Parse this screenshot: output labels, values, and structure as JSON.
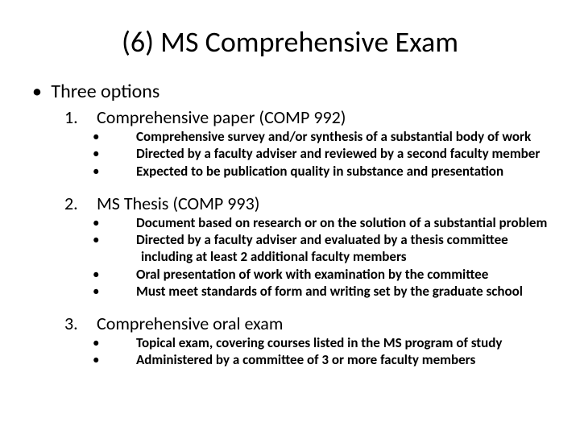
{
  "title": "(6) MS Comprehensive Exam",
  "intro": "Three options",
  "options": [
    {
      "num": "1.",
      "heading": "Comprehensive paper (COMP 992)",
      "points": [
        "Comprehensive survey and/or synthesis of a substantial body of work",
        "Directed by a faculty adviser and reviewed by a second faculty member",
        "Expected to be publication quality in substance and presentation"
      ]
    },
    {
      "num": "2.",
      "heading": "MS Thesis (COMP 993)",
      "points": [
        "Document based on research or on the solution of a substantial problem",
        "Directed by a faculty adviser and evaluated by a thesis committee including at least 2 additional faculty members",
        "Oral presentation of work with examination by the committee",
        "Must meet standards of form and writing set by the graduate school"
      ]
    },
    {
      "num": "3.",
      "heading": "Comprehensive oral exam",
      "points": [
        "Topical exam, covering courses listed in the MS program of study",
        "Administered by a committee of 3 or more faculty members"
      ]
    }
  ]
}
